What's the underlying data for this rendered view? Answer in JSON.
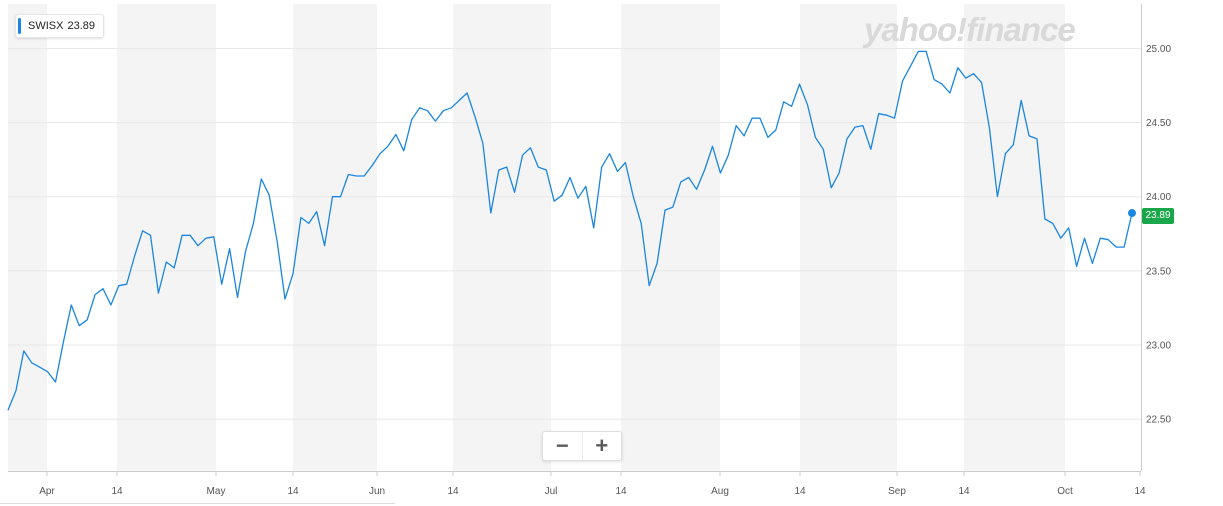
{
  "ticker": {
    "symbol": "SWISX",
    "last_price": "23.89"
  },
  "logo_text": "yahoo!finance",
  "zoom": {
    "out_label": "−",
    "in_label": "+"
  },
  "colors": {
    "line": "#1a86e2",
    "accent_marker": "#1a86e2",
    "price_tag": "#1aa64a",
    "band": "#f4f4f4",
    "grid": "#e8e8e8"
  },
  "chart_data": {
    "type": "line",
    "title": "",
    "xlabel": "",
    "ylabel": "",
    "series": [
      {
        "name": "SWISX",
        "values": [
          22.56,
          22.69,
          22.96,
          22.88,
          22.85,
          22.82,
          22.75,
          23.02,
          23.27,
          23.13,
          23.17,
          23.34,
          23.38,
          23.27,
          23.4,
          23.41,
          23.6,
          23.77,
          23.74,
          23.35,
          23.56,
          23.52,
          23.74,
          23.74,
          23.67,
          23.72,
          23.73,
          23.41,
          23.65,
          23.32,
          23.63,
          23.82,
          24.12,
          24.01,
          23.7,
          23.31,
          23.48,
          23.86,
          23.82,
          23.9,
          23.67,
          24.0,
          24.0,
          24.15,
          24.14,
          24.14,
          24.21,
          24.29,
          24.34,
          24.42,
          24.31,
          24.52,
          24.6,
          24.58,
          24.51,
          24.58,
          24.6,
          24.65,
          24.7,
          24.54,
          24.36,
          23.89,
          24.18,
          24.2,
          24.03,
          24.28,
          24.33,
          24.2,
          24.18,
          23.97,
          24.01,
          24.13,
          23.99,
          24.07,
          23.79,
          24.2,
          24.29,
          24.17,
          24.23,
          24.0,
          23.82,
          23.4,
          23.55,
          23.91,
          23.93,
          24.1,
          24.13,
          24.05,
          24.18,
          24.34,
          24.16,
          24.28,
          24.48,
          24.41,
          24.53,
          24.53,
          24.4,
          24.45,
          24.64,
          24.61,
          24.76,
          24.62,
          24.4,
          24.32,
          24.06,
          24.16,
          24.39,
          24.47,
          24.48,
          24.32,
          24.56,
          24.55,
          24.53,
          24.78,
          24.88,
          24.98,
          24.98,
          24.79,
          24.76,
          24.7,
          24.87,
          24.8,
          24.83,
          24.77,
          24.46,
          24.0,
          24.29,
          24.35,
          24.65,
          24.41,
          24.39,
          23.85,
          23.82,
          23.72,
          23.79,
          23.53,
          23.72,
          23.55,
          23.72,
          23.71,
          23.66,
          23.66,
          23.89
        ]
      }
    ],
    "ylim": [
      22.15,
      25.3
    ],
    "y_ticks": [
      "22.50",
      "23.00",
      "23.50",
      "24.00",
      "24.50",
      "25.00"
    ],
    "x_ticks": [
      "Apr",
      "14",
      "May",
      "14",
      "Jun",
      "14",
      "Jul",
      "14",
      "Aug",
      "14",
      "Sep",
      "14",
      "Oct",
      "14"
    ],
    "shaded_bands": true,
    "grid": true,
    "last_value_label": "23.89"
  }
}
